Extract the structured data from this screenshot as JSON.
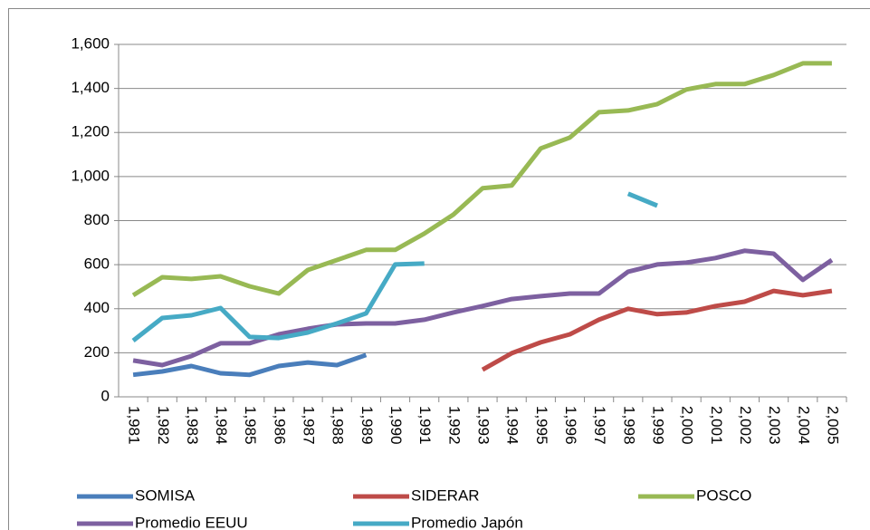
{
  "chart_data": {
    "type": "line",
    "categories": [
      "1,981",
      "1,982",
      "1,983",
      "1,984",
      "1,985",
      "1,986",
      "1,987",
      "1,988",
      "1,989",
      "1,990",
      "1,991",
      "1,992",
      "1,993",
      "1,994",
      "1,995",
      "1,996",
      "1,997",
      "1,998",
      "1,999",
      "2,000",
      "2,001",
      "2,002",
      "2,003",
      "2,004",
      "2,005"
    ],
    "series": [
      {
        "name": "SOMISA",
        "color": "#4a7ebb",
        "values": [
          100,
          115,
          140,
          107,
          100,
          140,
          156,
          144,
          190,
          null,
          null,
          null,
          null,
          null,
          null,
          null,
          null,
          null,
          null,
          null,
          null,
          null,
          null,
          null,
          null
        ]
      },
      {
        "name": "SIDERAR",
        "color": "#be4b48",
        "values": [
          null,
          null,
          null,
          null,
          null,
          null,
          null,
          null,
          null,
          null,
          null,
          null,
          123,
          198,
          247,
          284,
          350,
          400,
          375,
          383,
          412,
          432,
          481,
          461,
          481
        ]
      },
      {
        "name": "POSCO",
        "color": "#98b954",
        "values": [
          461,
          543,
          535,
          547,
          502,
          469,
          576,
          621,
          667,
          667,
          741,
          827,
          947,
          959,
          1128,
          1177,
          1292,
          1300,
          1329,
          1395,
          1420,
          1420,
          1461,
          1514,
          1514
        ]
      },
      {
        "name": "Promedio EEUU",
        "color": "#7d60a0",
        "values": [
          165,
          144,
          185,
          243,
          243,
          284,
          309,
          329,
          333,
          333,
          350,
          383,
          412,
          444,
          457,
          469,
          469,
          568,
          601,
          609,
          630,
          663,
          650,
          531,
          621
        ]
      },
      {
        "name": "Promedio Japón",
        "color": "#46aac5",
        "values": [
          255,
          358,
          370,
          403,
          272,
          267,
          292,
          333,
          379,
          601,
          605,
          null,
          null,
          null,
          null,
          null,
          null,
          922,
          868,
          null,
          null,
          null,
          null,
          null,
          null
        ]
      }
    ],
    "ylim": [
      0,
      1600
    ],
    "yticks": [
      0,
      200,
      400,
      600,
      800,
      {
        "value": 1000,
        "label": "1,000"
      },
      {
        "value": 1200,
        "label": "1,200"
      },
      {
        "value": 1400,
        "label": "1,400"
      },
      {
        "value": 1600,
        "label": "1,600"
      }
    ],
    "grid": true,
    "legend": "bottom"
  }
}
